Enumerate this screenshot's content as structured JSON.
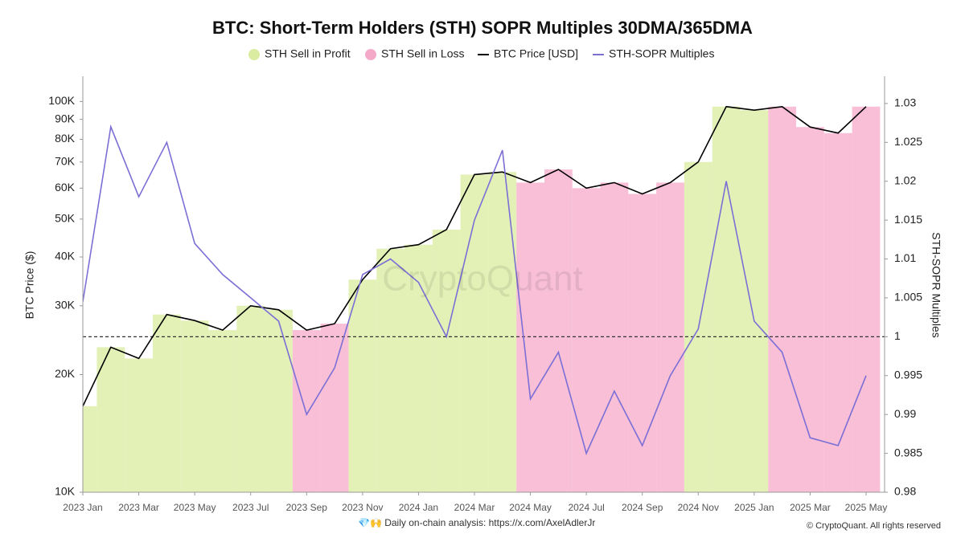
{
  "chart_data": {
    "type": "line",
    "title": "BTC: Short-Term Holders (STH) SOPR Multiples 30DMA/365DMA",
    "y_label": "BTC Price ($)",
    "y2_label": "STH-SOPR Multiples",
    "watermark": "CryptoQuant",
    "footer_left": "💎🙌 Daily on-chain analysis: https://x.com/AxelAdlerJr",
    "footer_right": "© CryptoQuant. All rights reserved",
    "categories": [
      "2023 Jan",
      null,
      "2023 Mar",
      null,
      "2023 May",
      null,
      "2023 Jul",
      null,
      "2023 Sep",
      null,
      "2023 Nov",
      null,
      "2024 Jan",
      null,
      "2024 Mar",
      null,
      "2024 May",
      null,
      "2024 Jul",
      null,
      "2024 Sep",
      null,
      "2024 Nov",
      null,
      "2025 Jan",
      null,
      "2025 Mar",
      null,
      "2025 May"
    ],
    "regions": [
      {
        "name": "STH Sell in Profit",
        "color": "#d9ec9f"
      },
      {
        "name": "STH Sell in Loss",
        "color": "#f5a9c9"
      }
    ],
    "threshold": 1,
    "series": [
      {
        "name": "BTC Price [USD]",
        "color": "#000000",
        "values": [
          16600,
          23500,
          22000,
          28500,
          27500,
          26000,
          30000,
          29300,
          26000,
          27000,
          35000,
          42000,
          43000,
          47000,
          65000,
          66000,
          62000,
          67000,
          60000,
          62000,
          58000,
          62000,
          70000,
          97000,
          95000,
          97000,
          86000,
          83000,
          97000
        ]
      },
      {
        "name": "STH-SOPR Multiples",
        "color": "#7b6fd6",
        "axis": "y2",
        "values": [
          1.0045,
          1.027,
          1.018,
          1.025,
          1.012,
          1.008,
          1.005,
          1.002,
          0.99,
          0.996,
          1.008,
          1.01,
          1.007,
          1.0,
          1.015,
          1.024,
          0.992,
          0.998,
          0.985,
          0.993,
          0.986,
          0.995,
          1.001,
          1.02,
          1.002,
          0.998,
          0.987,
          0.986,
          0.995
        ]
      }
    ],
    "log_y": true,
    "ylim": [
      10000,
      116000
    ],
    "yticks": [
      {
        "value": 10000,
        "label": "10K"
      },
      {
        "value": 20000,
        "label": "20K"
      },
      {
        "value": 30000,
        "label": "30K"
      },
      {
        "value": 40000,
        "label": "40K"
      },
      {
        "value": 50000,
        "label": "50K"
      },
      {
        "value": 60000,
        "label": "60K"
      },
      {
        "value": 70000,
        "label": "70K"
      },
      {
        "value": 80000,
        "label": "80K"
      },
      {
        "value": 90000,
        "label": "90K"
      },
      {
        "value": 100000,
        "label": "100K"
      }
    ],
    "y2lim": [
      0.98,
      1.0335
    ],
    "y2ticks": [
      0.98,
      0.985,
      0.99,
      0.995,
      1,
      1.005,
      1.01,
      1.015,
      1.02,
      1.025,
      1.03
    ]
  }
}
